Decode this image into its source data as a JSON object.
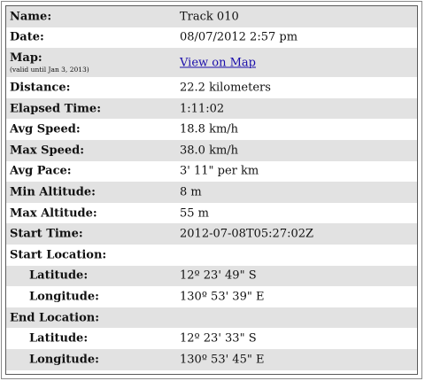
{
  "rows": [
    {
      "label": "Name:",
      "value": "Track 010"
    },
    {
      "label": "Date:",
      "value": "08/07/2012 2:57 pm"
    },
    {
      "label": "Map:",
      "note": "(valid until Jan 3, 2013)",
      "link": "View on Map"
    },
    {
      "label": "Distance:",
      "value": "22.2 kilometers"
    },
    {
      "label": "Elapsed Time:",
      "value": "1:11:02"
    },
    {
      "label": "Avg Speed:",
      "value": "18.8 km/h"
    },
    {
      "label": "Max Speed:",
      "value": "38.0 km/h"
    },
    {
      "label": "Avg Pace:",
      "value": "3' 11\" per km"
    },
    {
      "label": "Min Altitude:",
      "value": "8 m"
    },
    {
      "label": "Max Altitude:",
      "value": "55 m"
    },
    {
      "label": "Start Time:",
      "value": "2012-07-08T05:27:02Z"
    },
    {
      "label": "Start Location:",
      "value": ""
    },
    {
      "label": "Latitude:",
      "value": "12º 23' 49\" S"
    },
    {
      "label": "Longitude:",
      "value": "130º 53' 39\" E"
    },
    {
      "label": "End Location:",
      "value": ""
    },
    {
      "label": "Latitude:",
      "value": "12º 23' 33\" S"
    },
    {
      "label": "Longitude:",
      "value": "130º 53' 45\" E"
    }
  ],
  "colors": {
    "row_alt_background": "#e2e2e2",
    "link": "#1a0dab"
  }
}
